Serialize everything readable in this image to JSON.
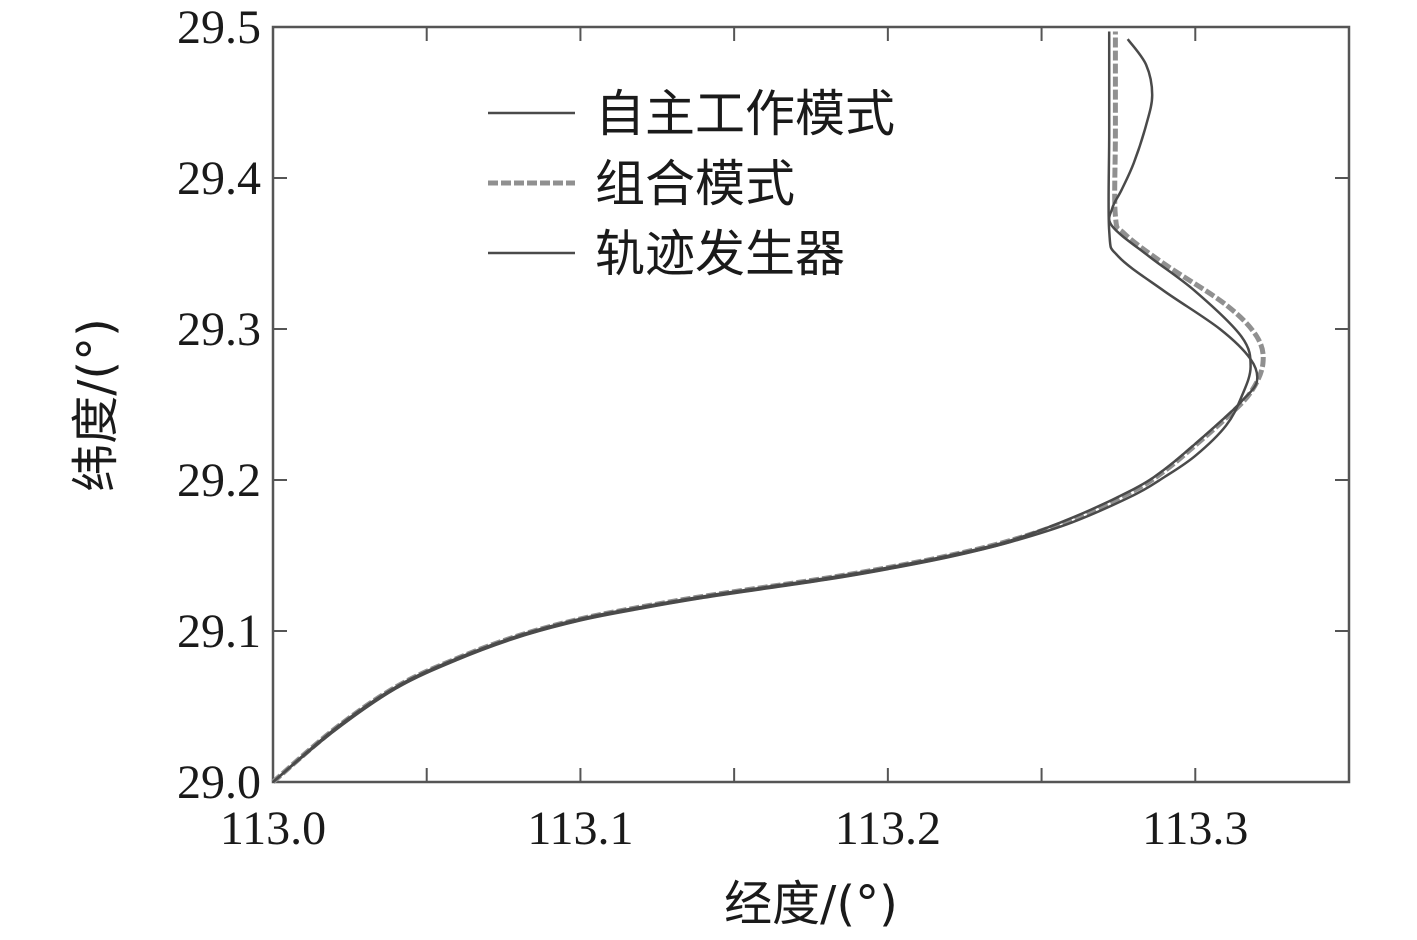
{
  "chart_data": {
    "type": "line",
    "title": "",
    "xlabel": "经度/(°)",
    "ylabel": "纬度/(°)",
    "xlim": [
      113.0,
      113.35
    ],
    "ylim": [
      29.0,
      29.5
    ],
    "x_ticks": [
      113.0,
      113.1,
      113.2,
      113.3
    ],
    "x_tick_labels": [
      "113.0",
      "113.1",
      "113.2",
      "113.3"
    ],
    "y_ticks": [
      29.0,
      29.1,
      29.2,
      29.3,
      29.4,
      29.5
    ],
    "y_tick_labels": [
      "29.0",
      "29.1",
      "29.2",
      "29.3",
      "29.4",
      "29.5"
    ],
    "grid": false,
    "legend_position": "top-center",
    "series": [
      {
        "name": "自主工作模式",
        "color": "#4a4a4a",
        "style": "solid",
        "x": [
          113.0,
          113.02,
          113.04,
          113.06,
          113.08,
          113.1,
          113.12,
          113.14,
          113.16,
          113.18,
          113.2,
          113.22,
          113.24,
          113.26,
          113.28,
          113.29,
          113.3,
          113.31,
          113.315,
          113.318,
          113.315,
          113.3,
          113.285,
          113.273,
          113.273,
          113.276,
          113.28,
          113.284,
          113.286,
          113.284,
          113.278
        ],
        "y": [
          29.0,
          29.034,
          29.062,
          29.081,
          29.096,
          29.107,
          29.115,
          29.122,
          29.128,
          29.134,
          29.141,
          29.149,
          29.159,
          29.172,
          29.19,
          29.202,
          29.216,
          29.236,
          29.255,
          29.275,
          29.295,
          29.325,
          29.348,
          29.368,
          29.38,
          29.392,
          29.41,
          29.435,
          29.455,
          29.475,
          29.492
        ]
      },
      {
        "name": "组合模式",
        "color": "#909090",
        "style": "dashed",
        "x": [
          113.0,
          113.02,
          113.04,
          113.06,
          113.08,
          113.1,
          113.12,
          113.14,
          113.16,
          113.18,
          113.2,
          113.22,
          113.24,
          113.26,
          113.28,
          113.29,
          113.3,
          113.31,
          113.318,
          113.322,
          113.32,
          113.31,
          113.29,
          113.277,
          113.274,
          113.274,
          113.274
        ],
        "y": [
          29.0,
          29.035,
          29.063,
          29.082,
          29.097,
          29.108,
          29.116,
          29.123,
          29.129,
          29.135,
          29.142,
          29.15,
          29.16,
          29.174,
          29.193,
          29.206,
          29.223,
          29.241,
          29.258,
          29.277,
          29.295,
          29.316,
          29.343,
          29.363,
          29.375,
          29.43,
          29.497
        ]
      },
      {
        "name": "轨迹发生器",
        "color": "#4a4a4a",
        "style": "solid",
        "x": [
          113.0,
          113.02,
          113.04,
          113.06,
          113.08,
          113.1,
          113.12,
          113.14,
          113.16,
          113.18,
          113.2,
          113.22,
          113.24,
          113.26,
          113.28,
          113.29,
          113.3,
          113.31,
          113.315,
          113.32,
          113.318,
          113.308,
          113.29,
          113.275,
          113.272,
          113.272,
          113.272
        ],
        "y": [
          29.0,
          29.035,
          29.063,
          29.082,
          29.097,
          29.108,
          29.116,
          29.123,
          29.129,
          29.135,
          29.142,
          29.15,
          29.16,
          29.175,
          29.194,
          29.207,
          29.224,
          29.242,
          29.252,
          29.265,
          29.28,
          29.3,
          29.325,
          29.348,
          29.365,
          29.43,
          29.497
        ]
      }
    ]
  }
}
